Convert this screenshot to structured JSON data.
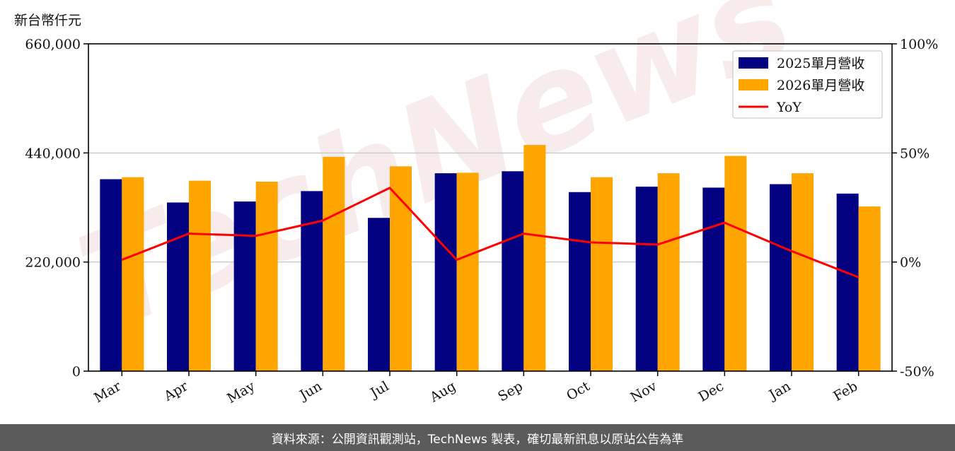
{
  "unit_label": "新台幣仟元",
  "watermark": "TechNews",
  "footer": "資料來源：公開資訊觀測站，TechNews 製表，確切最新訊息以原站公告為準",
  "colors": {
    "series_2025": "#000080",
    "series_2026": "#FFA500",
    "yoy": "#FF0000",
    "grid": "#cccccc"
  },
  "chart_data": {
    "type": "bar",
    "categories": [
      "Mar",
      "Apr",
      "May",
      "Jun",
      "Jul",
      "Aug",
      "Sep",
      "Oct",
      "Nov",
      "Dec",
      "Jan",
      "Feb"
    ],
    "series": [
      {
        "name": "2025單月營收",
        "type": "bar",
        "axis": "left",
        "values": [
          387000,
          340000,
          342000,
          363000,
          309000,
          399000,
          403000,
          361000,
          372000,
          370000,
          377000,
          358000
        ]
      },
      {
        "name": "2026單月營收",
        "type": "bar",
        "axis": "left",
        "values": [
          391000,
          384000,
          382000,
          432000,
          413000,
          400000,
          456000,
          391000,
          399000,
          434000,
          399000,
          332000
        ]
      },
      {
        "name": "YoY",
        "type": "line",
        "axis": "right",
        "values": [
          1,
          13,
          12,
          19,
          34,
          1,
          13,
          9,
          8,
          18,
          5,
          -7
        ]
      }
    ],
    "ylim_left": [
      0,
      660000
    ],
    "yticks_left": [
      "0",
      "220,000",
      "440,000",
      "660,000"
    ],
    "ylim_right": [
      -50,
      100
    ],
    "yticks_right": [
      "-50%",
      "0%",
      "50%",
      "100%"
    ],
    "grid": true,
    "legend_position": "top-right"
  }
}
